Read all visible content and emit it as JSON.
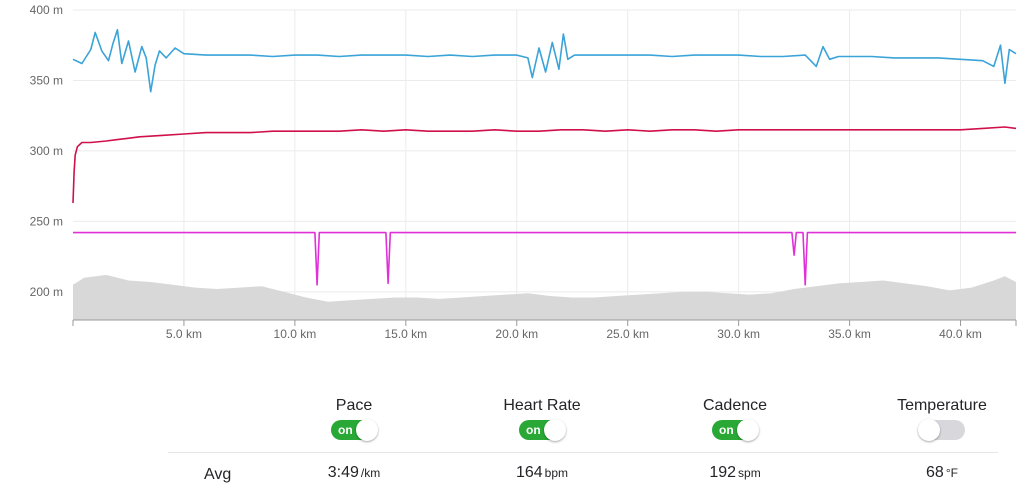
{
  "chart_data": {
    "type": "line",
    "x_unit": "km",
    "x_range": [
      0,
      42.5
    ],
    "x_ticks": [
      "5.0 km",
      "10.0 km",
      "15.0 km",
      "20.0 km",
      "25.0 km",
      "30.0 km",
      "35.0 km",
      "40.0 km"
    ],
    "x_tick_values": [
      5,
      10,
      15,
      20,
      25,
      30,
      35,
      40
    ],
    "y_range": [
      180,
      400
    ],
    "y_ticks": [
      "200 m",
      "250 m",
      "300 m",
      "350 m",
      "400 m"
    ],
    "y_tick_values": [
      200,
      250,
      300,
      350,
      400
    ],
    "grid": true,
    "series": [
      {
        "key": "pace",
        "color": "#3aa3d8",
        "x": [
          0,
          0.4,
          0.8,
          1.0,
          1.3,
          1.6,
          1.8,
          2.0,
          2.2,
          2.5,
          2.8,
          3.1,
          3.3,
          3.5,
          3.7,
          3.9,
          4.2,
          4.6,
          5.0,
          6,
          7,
          8,
          9,
          10,
          11,
          12,
          13,
          14,
          15,
          16,
          17,
          18,
          19,
          20,
          20.5,
          20.7,
          21.0,
          21.3,
          21.6,
          21.9,
          22.1,
          22.3,
          22.6,
          23,
          24,
          25,
          26,
          27,
          28,
          29,
          30,
          31,
          32,
          33,
          33.5,
          33.8,
          34.1,
          34.5,
          35,
          36,
          37,
          38,
          39,
          40,
          41,
          41.5,
          41.8,
          42.0,
          42.2,
          42.5
        ],
        "values": [
          365,
          362,
          372,
          384,
          371,
          364,
          376,
          386,
          362,
          378,
          356,
          374,
          366,
          342,
          361,
          371,
          366,
          373,
          369,
          368,
          368,
          368,
          367,
          368,
          368,
          367,
          368,
          368,
          368,
          367,
          368,
          367,
          368,
          368,
          366,
          352,
          373,
          356,
          377,
          358,
          383,
          365,
          368,
          368,
          368,
          368,
          368,
          367,
          368,
          368,
          368,
          367,
          367,
          368,
          360,
          374,
          365,
          367,
          367,
          367,
          366,
          366,
          366,
          365,
          364,
          360,
          375,
          348,
          372,
          369
        ]
      },
      {
        "key": "heart_rate",
        "color": "#d0104a",
        "x": [
          0,
          0.05,
          0.1,
          0.2,
          0.4,
          0.8,
          1.5,
          2,
          3,
          4,
          5,
          6,
          7,
          8,
          9,
          10,
          11,
          12,
          13,
          14,
          15,
          16,
          17,
          18,
          19,
          20,
          21,
          22,
          23,
          24,
          25,
          26,
          27,
          28,
          29,
          30,
          31,
          32,
          33,
          34,
          35,
          36,
          37,
          38,
          39,
          40,
          41,
          42,
          42.5
        ],
        "values": [
          263,
          285,
          297,
          303,
          306,
          306,
          307,
          308,
          310,
          311,
          312,
          313,
          313,
          313,
          314,
          314,
          314,
          314,
          315,
          314,
          315,
          314,
          314,
          314,
          315,
          314,
          314,
          315,
          315,
          314,
          315,
          314,
          315,
          315,
          314,
          315,
          315,
          315,
          315,
          315,
          315,
          315,
          315,
          315,
          315,
          315,
          316,
          317,
          316
        ]
      },
      {
        "key": "cadence",
        "color": "#e030d8",
        "x": [
          0,
          5,
          10.9,
          11.0,
          11.1,
          12,
          14.1,
          14.2,
          14.3,
          20,
          25,
          30,
          32.4,
          32.5,
          32.6,
          32.9,
          33.0,
          33.1,
          35,
          40,
          42.5
        ],
        "values": [
          242,
          242,
          242,
          205,
          242,
          242,
          242,
          206,
          242,
          242,
          242,
          242,
          242,
          226,
          242,
          242,
          205,
          242,
          242,
          242,
          242
        ]
      }
    ],
    "elevation": {
      "color": "#d8d8d8",
      "x": [
        0,
        0.5,
        1.5,
        2.5,
        3.5,
        4.5,
        5.5,
        6.5,
        7.5,
        8.5,
        9.5,
        10.5,
        11.5,
        12.5,
        13.5,
        14.5,
        15.5,
        16.5,
        17.5,
        18.5,
        19.5,
        20.5,
        21.5,
        22.5,
        23.5,
        24.5,
        25.5,
        26.5,
        27.5,
        28.5,
        29.5,
        30.5,
        31.5,
        32.5,
        33.5,
        34.5,
        35.5,
        36.5,
        37.5,
        38.5,
        39.5,
        40.5,
        41.5,
        42.0,
        42.5
      ],
      "values": [
        205,
        210,
        212,
        208,
        207,
        205,
        203,
        202,
        203,
        204,
        200,
        196,
        193,
        194,
        195,
        196,
        196,
        195,
        196,
        197,
        198,
        199,
        197,
        196,
        196,
        197,
        198,
        199,
        200,
        200,
        199,
        198,
        199,
        202,
        204,
        206,
        207,
        208,
        206,
        204,
        201,
        203,
        208,
        211,
        207
      ]
    }
  },
  "controls": [
    {
      "label": "Pace",
      "state": "on",
      "state_label": "on"
    },
    {
      "label": "Heart Rate",
      "state": "on",
      "state_label": "on"
    },
    {
      "label": "Cadence",
      "state": "on",
      "state_label": "on"
    },
    {
      "label": "Temperature",
      "state": "off",
      "state_label": ""
    }
  ],
  "averages": {
    "label": "Avg",
    "pace": {
      "value": "3:49",
      "unit": "/km"
    },
    "heart_rate": {
      "value": "164",
      "unit": "bpm"
    },
    "cadence": {
      "value": "192",
      "unit": "spm"
    },
    "temperature": {
      "value": "68",
      "unit": "°F"
    }
  }
}
